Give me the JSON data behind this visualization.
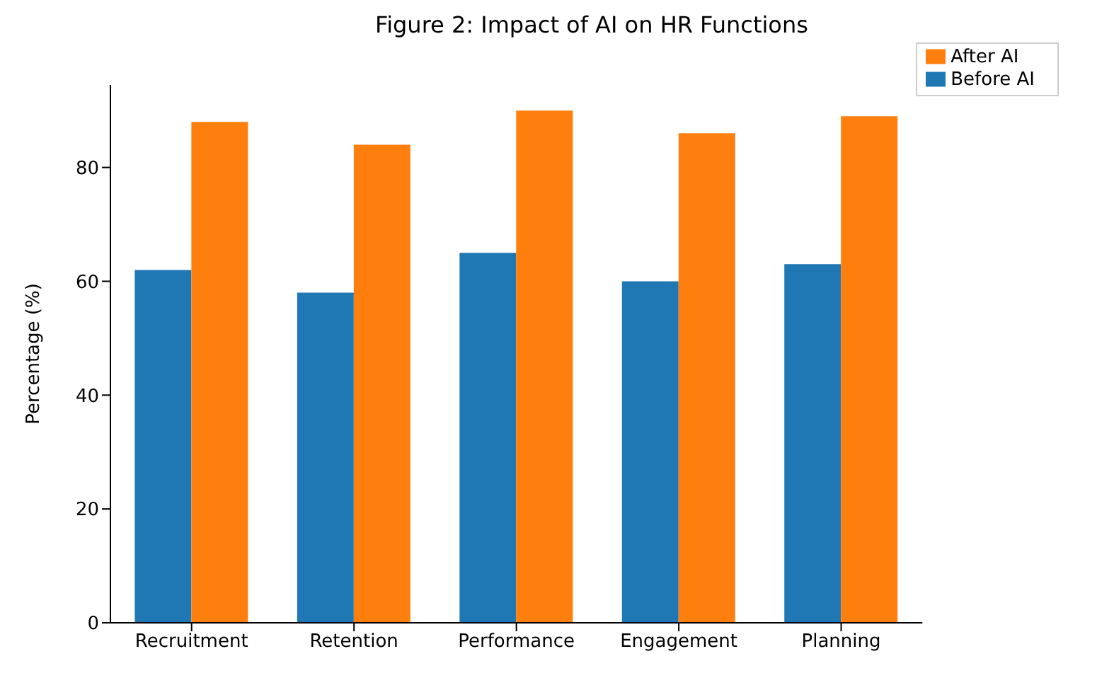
{
  "chart_data": {
    "type": "bar",
    "title": "Figure 2: Impact of AI on HR Functions",
    "ylabel": "Percentage (%)",
    "categories": [
      "Recruitment",
      "Retention",
      "Performance",
      "Engagement",
      "Planning"
    ],
    "series": [
      {
        "name": "Before AI",
        "color": "#1f77b4",
        "values": [
          62,
          58,
          65,
          60,
          63
        ]
      },
      {
        "name": "After AI",
        "color": "#ff7f0e",
        "values": [
          88,
          84,
          90,
          86,
          89
        ]
      }
    ],
    "ylim": [
      0,
      94.5
    ],
    "yticks": [
      0,
      20,
      40,
      60,
      80
    ],
    "legend": "top right",
    "grid": false
  }
}
